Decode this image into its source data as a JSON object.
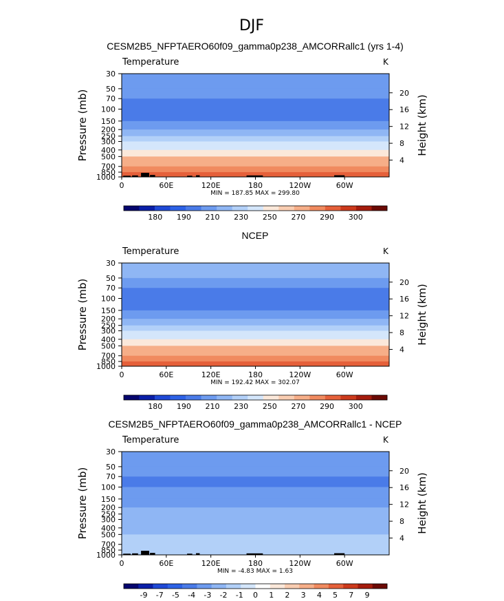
{
  "page_title": "DJF",
  "colors": {
    "temperature_scale": [
      "#06066e",
      "#0a1fa8",
      "#1f49d6",
      "#2d62e6",
      "#4a7be8",
      "#6d9bef",
      "#8fb6f4",
      "#b2d0f8",
      "#d4e6fb",
      "#fbe8da",
      "#f9cdb1",
      "#f6ae88",
      "#f08a5f",
      "#e5603a",
      "#cc3a1c",
      "#a51c0d",
      "#6b0a05"
    ],
    "difference_scale": [
      "#06066e",
      "#0a1fa8",
      "#1f49d6",
      "#2d62e6",
      "#4a7be8",
      "#6d9bef",
      "#8fb6f4",
      "#b2d0f8",
      "#d4e6fb",
      "#ffffff",
      "#fbe8da",
      "#f9cdb1",
      "#f6ae88",
      "#f08a5f",
      "#e5603a",
      "#cc3a1c",
      "#a51c0d",
      "#6b0a05"
    ],
    "topography": "#000000"
  },
  "chart_data": [
    {
      "type": "heatmap",
      "title": "CESM2B5_NFPTAERO60f09_gamma0p238_AMCORRallc1 (yrs 1-4)",
      "variable_label": "Temperature",
      "units": "K",
      "ylabel": "Pressure (mb)",
      "ylabel_right": "Height (km)",
      "x_ticks": [
        "0",
        "60E",
        "120E",
        "180",
        "120W",
        "60W"
      ],
      "x_tick_values": [
        0,
        60,
        120,
        180,
        240,
        300
      ],
      "xlim": [
        0,
        360
      ],
      "y_ticks": [
        30,
        50,
        70,
        100,
        150,
        200,
        250,
        300,
        400,
        500,
        700,
        850,
        1000
      ],
      "ylim": [
        30,
        1000
      ],
      "height_ticks": [
        20,
        16,
        12,
        8,
        4
      ],
      "stats_text": "MIN = 187.85   MAX = 299.80",
      "colorbar_labels": [
        "180",
        "190",
        "210",
        "230",
        "250",
        "270",
        "290",
        "300"
      ],
      "levels": [
        {
          "p": 30,
          "T": 222
        },
        {
          "p": 50,
          "T": 214
        },
        {
          "p": 70,
          "T": 207
        },
        {
          "p": 100,
          "T": 204
        },
        {
          "p": 150,
          "T": 213
        },
        {
          "p": 200,
          "T": 221
        },
        {
          "p": 250,
          "T": 230
        },
        {
          "p": 300,
          "T": 239
        },
        {
          "p": 400,
          "T": 253
        },
        {
          "p": 500,
          "T": 264
        },
        {
          "p": 700,
          "T": 279
        },
        {
          "p": 850,
          "T": 287
        },
        {
          "p": 1000,
          "T": 294
        }
      ],
      "topography": [
        {
          "lon": [
            2,
            12
          ],
          "p": 960
        },
        {
          "lon": [
            14,
            22
          ],
          "p": 950
        },
        {
          "lon": [
            26,
            37
          ],
          "p": 870
        },
        {
          "lon": [
            38,
            45
          ],
          "p": 935
        },
        {
          "lon": [
            88,
            95
          ],
          "p": 960
        },
        {
          "lon": [
            100,
            105
          ],
          "p": 945
        },
        {
          "lon": [
            168,
            190
          ],
          "p": 950
        },
        {
          "lon": [
            286,
            300
          ],
          "p": 945
        }
      ]
    },
    {
      "type": "heatmap",
      "title": "NCEP",
      "variable_label": "Temperature",
      "units": "K",
      "ylabel": "Pressure (mb)",
      "ylabel_right": "Height (km)",
      "x_ticks": [
        "0",
        "60E",
        "120E",
        "180",
        "120W",
        "60W"
      ],
      "x_tick_values": [
        0,
        60,
        120,
        180,
        240,
        300
      ],
      "xlim": [
        0,
        360
      ],
      "y_ticks": [
        30,
        50,
        70,
        100,
        150,
        200,
        250,
        300,
        400,
        500,
        700,
        850,
        1000
      ],
      "ylim": [
        30,
        1000
      ],
      "height_ticks": [
        20,
        16,
        12,
        8,
        4
      ],
      "stats_text": "MIN = 192.42   MAX = 302.07",
      "colorbar_labels": [
        "180",
        "190",
        "210",
        "230",
        "250",
        "270",
        "290",
        "300"
      ],
      "levels": [
        {
          "p": 30,
          "T": 225
        },
        {
          "p": 50,
          "T": 217
        },
        {
          "p": 70,
          "T": 211
        },
        {
          "p": 100,
          "T": 206
        },
        {
          "p": 150,
          "T": 212
        },
        {
          "p": 200,
          "T": 220
        },
        {
          "p": 250,
          "T": 229
        },
        {
          "p": 300,
          "T": 238
        },
        {
          "p": 400,
          "T": 253
        },
        {
          "p": 500,
          "T": 265
        },
        {
          "p": 700,
          "T": 280
        },
        {
          "p": 850,
          "T": 289
        },
        {
          "p": 1000,
          "T": 296
        }
      ],
      "topography": []
    },
    {
      "type": "heatmap",
      "title": "CESM2B5_NFPTAERO60f09_gamma0p238_AMCORRallc1 - NCEP",
      "variable_label": "Temperature",
      "units": "K",
      "ylabel": "Pressure (mb)",
      "ylabel_right": "Height (km)",
      "x_ticks": [
        "0",
        "60E",
        "120E",
        "180",
        "120W",
        "60W"
      ],
      "x_tick_values": [
        0,
        60,
        120,
        180,
        240,
        300
      ],
      "xlim": [
        0,
        360
      ],
      "y_ticks": [
        30,
        50,
        70,
        100,
        150,
        200,
        250,
        300,
        400,
        500,
        700,
        850,
        1000
      ],
      "ylim": [
        30,
        1000
      ],
      "height_ticks": [
        20,
        16,
        12,
        8,
        4
      ],
      "stats_text": "MIN = -4.83   MAX = 1.63",
      "colorbar_labels": [
        "-9",
        "-7",
        "-5",
        "-4",
        "-3",
        "-2",
        "-1",
        "0",
        "1",
        "2",
        "3",
        "4",
        "5",
        "7",
        "9"
      ],
      "levels": [
        {
          "p": 30,
          "T": -2.5
        },
        {
          "p": 50,
          "T": -3.0
        },
        {
          "p": 70,
          "T": -3.0
        },
        {
          "p": 100,
          "T": -3.5
        },
        {
          "p": 150,
          "T": -2.5
        },
        {
          "p": 200,
          "T": -2.2
        },
        {
          "p": 250,
          "T": -1.8
        },
        {
          "p": 300,
          "T": -1.6
        },
        {
          "p": 400,
          "T": -1.2
        },
        {
          "p": 500,
          "T": -1.1
        },
        {
          "p": 700,
          "T": -0.8
        },
        {
          "p": 850,
          "T": -0.6
        },
        {
          "p": 1000,
          "T": -0.5
        }
      ],
      "topography": [
        {
          "lon": [
            2,
            12
          ],
          "p": 960
        },
        {
          "lon": [
            14,
            22
          ],
          "p": 950
        },
        {
          "lon": [
            26,
            37
          ],
          "p": 870
        },
        {
          "lon": [
            38,
            45
          ],
          "p": 935
        },
        {
          "lon": [
            88,
            95
          ],
          "p": 960
        },
        {
          "lon": [
            100,
            105
          ],
          "p": 945
        },
        {
          "lon": [
            168,
            190
          ],
          "p": 950
        },
        {
          "lon": [
            286,
            300
          ],
          "p": 945
        }
      ]
    }
  ]
}
